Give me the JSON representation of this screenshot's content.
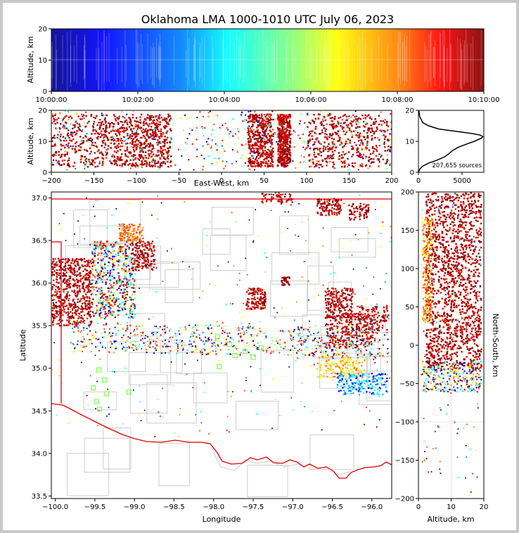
{
  "title": "Oklahoma LMA 1000-1010 UTC July 06, 2023",
  "chart_data": [
    {
      "type": "scatter",
      "panel": "time-altitude",
      "ylabel": "Altitude, km",
      "xlim": [
        "10:00:00",
        "10:10:00"
      ],
      "ylim": [
        0,
        20
      ],
      "xticks": [
        "10:00:00",
        "10:02:00",
        "10:04:00",
        "10:06:00",
        "10:08:00",
        "10:10:00"
      ],
      "yticks": [
        "0",
        "10",
        "20"
      ],
      "color_encoding": "time",
      "colors": [
        "#00008f",
        "#0000ff",
        "#0080ff",
        "#00ffff",
        "#80ff80",
        "#ffff00",
        "#ff8000",
        "#ff0000",
        "#800000"
      ]
    },
    {
      "type": "scatter",
      "panel": "east-west-altitude",
      "xlabel": "East-West, km",
      "ylabel": "Altitude, km",
      "xlim": [
        -200,
        200
      ],
      "ylim": [
        0,
        20
      ],
      "xticks": [
        "−200",
        "−150",
        "−100",
        "−50",
        "0",
        "50",
        "100",
        "150",
        "200"
      ],
      "yticks": [
        "0",
        "10",
        "20"
      ]
    },
    {
      "type": "line",
      "panel": "altitude-histogram",
      "annotation": "207,655 sources",
      "xlim": [
        0,
        7500
      ],
      "ylim": [
        0,
        20
      ],
      "xticks": [
        "0",
        "5000"
      ],
      "yticks": [
        "0",
        "10",
        "20"
      ],
      "x": [
        30,
        150,
        500,
        1200,
        2200,
        3000,
        3500,
        3900,
        4500,
        5400,
        6400,
        7200,
        7400,
        7100,
        6200,
        4900,
        3600,
        2300,
        1200,
        500,
        150,
        40
      ],
      "y": [
        0.2,
        1,
        2,
        3,
        4,
        5,
        6,
        7,
        8,
        9,
        10,
        11,
        11.5,
        12,
        12.5,
        13,
        13.5,
        14,
        15,
        16,
        18,
        20
      ]
    },
    {
      "type": "scatter",
      "panel": "plan-view",
      "xlabel": "Longitude",
      "ylabel": "Latitude",
      "xlim": [
        -100.05,
        -95.75
      ],
      "ylim": [
        33.47,
        37.07
      ],
      "xticks": [
        "−100.0",
        "−99.5",
        "−99.0",
        "−98.5",
        "−98.0",
        "−97.5",
        "−97.0",
        "−96.5",
        "−96.0"
      ],
      "yticks": [
        "33.5",
        "34.0",
        "34.5",
        "35.0",
        "35.5",
        "36.0",
        "36.5",
        "37.0"
      ],
      "stations": [
        [
          -99.45,
          34.98
        ],
        [
          -99.38,
          34.86
        ],
        [
          -99.52,
          34.77
        ],
        [
          -99.35,
          34.7
        ],
        [
          -99.07,
          34.72
        ],
        [
          -99.48,
          34.61
        ],
        [
          -99.44,
          34.52
        ],
        [
          -97.93,
          35.02
        ],
        [
          -97.73,
          35.15
        ],
        [
          -97.8,
          35.28
        ],
        [
          -97.6,
          35.2
        ],
        [
          -97.5,
          35.13
        ],
        [
          -97.4,
          35.24
        ],
        [
          -97.95,
          35.37
        ]
      ]
    },
    {
      "type": "scatter",
      "panel": "north-south-altitude",
      "xlabel": "Altitude, km",
      "ylabel": "North-South, km",
      "xlim": [
        0,
        20
      ],
      "ylim": [
        -200,
        200
      ],
      "xticks": [
        "0",
        "10",
        "20"
      ],
      "yticks": [
        "−200",
        "−150",
        "−100",
        "−50",
        "0",
        "50",
        "100",
        "150",
        "200"
      ]
    }
  ]
}
